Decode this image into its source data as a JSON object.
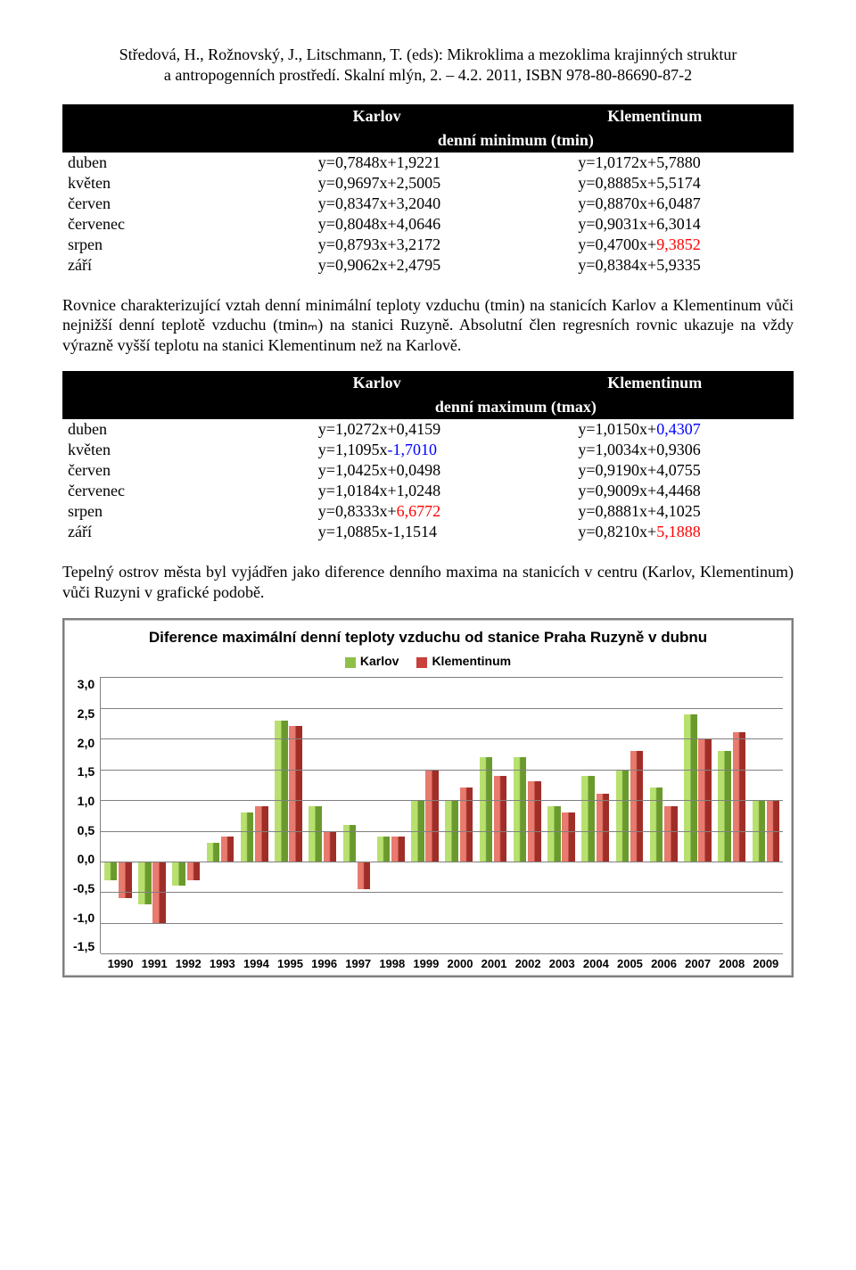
{
  "header": {
    "line1": "Středová, H., Rožnovský, J., Litschmann, T. (eds): Mikroklima a mezoklima krajinných struktur",
    "line2": "a antropogenních prostředí. Skalní mlýn, 2. – 4.2. 2011, ISBN 978-80-86690-87-2"
  },
  "table1": {
    "col1": "Karlov",
    "col2": "Klementinum",
    "sub": "denní minimum (tmin)",
    "rows": [
      {
        "m": "duben",
        "k": [
          [
            "y=0,7848x+"
          ],
          [
            "1,9221"
          ]
        ],
        "kl": [
          [
            "y=1,0172x+"
          ],
          [
            "5,7880"
          ]
        ]
      },
      {
        "m": "květen",
        "k": [
          [
            "y=0,9697x+"
          ],
          [
            "2,5005"
          ]
        ],
        "kl": [
          [
            "y=0,8885x+"
          ],
          [
            "5,5174"
          ]
        ]
      },
      {
        "m": "červen",
        "k": [
          [
            "y=0,8347x+"
          ],
          [
            "3,2040"
          ]
        ],
        "kl": [
          [
            "y=0,8870x+"
          ],
          [
            "6,0487"
          ]
        ]
      },
      {
        "m": "červenec",
        "k": [
          [
            "y=0,8048x+"
          ],
          [
            "4,0646"
          ]
        ],
        "kl": [
          [
            "y=0,9031x+"
          ],
          [
            "6,3014"
          ]
        ]
      },
      {
        "m": "srpen",
        "k": [
          [
            "y=0,8793x+"
          ],
          [
            "3,2172"
          ]
        ],
        "kl": [
          [
            "y=0,4700x+"
          ],
          [
            "9,3852",
            "red"
          ]
        ]
      },
      {
        "m": "září",
        "k": [
          [
            "y=0,9062x+"
          ],
          [
            "2,4795"
          ]
        ],
        "kl": [
          [
            "y=0,8384x+"
          ],
          [
            "5,9335"
          ]
        ]
      }
    ]
  },
  "para1": "Rovnice charakterizující vztah denní minimální teploty vzduchu (tmin) na stanicích Karlov a Klementinum vůči nejnižší denní teplotě vzduchu (tminₘ) na stanici Ruzyně. Absolutní člen regresních rovnic ukazuje na vždy výrazně vyšší teplotu na stanici Klementinum než na Karlově.",
  "table2": {
    "col1": "Karlov",
    "col2": "Klementinum",
    "sub": "denní maximum (tmax)",
    "rows": [
      {
        "m": "duben",
        "k": [
          [
            "y=1,0272x+"
          ],
          [
            "0,4159"
          ]
        ],
        "kl": [
          [
            "y=1,0150x+"
          ],
          [
            "0,4307",
            "blue"
          ]
        ]
      },
      {
        "m": "květen",
        "k": [
          [
            "y=1,1095x"
          ],
          [
            "-1,7010",
            "blue"
          ]
        ],
        "kl": [
          [
            "y=1,0034x+"
          ],
          [
            "0,9306"
          ]
        ]
      },
      {
        "m": "červen",
        "k": [
          [
            "y=1,0425x+"
          ],
          [
            "0,0498"
          ]
        ],
        "kl": [
          [
            "y=0,9190x+"
          ],
          [
            "4,0755"
          ]
        ]
      },
      {
        "m": "červenec",
        "k": [
          [
            "y=1,0184x+"
          ],
          [
            "1,0248"
          ]
        ],
        "kl": [
          [
            "y=0,9009x+"
          ],
          [
            "4,4468"
          ]
        ]
      },
      {
        "m": "srpen",
        "k": [
          [
            "y=0,8333x+"
          ],
          [
            "6,6772",
            "red"
          ]
        ],
        "kl": [
          [
            "y=0,8881x+"
          ],
          [
            "4,1025"
          ]
        ]
      },
      {
        "m": "září",
        "k": [
          [
            "y=1,0885x-"
          ],
          [
            "1,1514"
          ]
        ],
        "kl": [
          [
            "y=0,8210x+"
          ],
          [
            "5,1888",
            "red"
          ]
        ]
      }
    ]
  },
  "para2": "Tepelný ostrov města byl vyjádřen jako diference denního maxima na stanicích v centru (Karlov, Klementinum) vůči Ruzyni v grafické podobě.",
  "chart": {
    "title": "Diference maximální denní teploty vzduchu od stanice Praha Ruzyně v dubnu",
    "legend": [
      {
        "label": "Karlov",
        "color": "#8fbf4a"
      },
      {
        "label": "Klementinum",
        "color": "#c8403a"
      }
    ],
    "ymin": -1.5,
    "ymax": 3.0,
    "ystep": 0.5,
    "yticks": [
      "3,0",
      "2,5",
      "2,0",
      "1,5",
      "1,0",
      "0,5",
      "0,0",
      "-0,5",
      "-1,0",
      "-1,5"
    ],
    "colors": {
      "karlov": {
        "light": "#b8e06f",
        "dark": "#6a9a2e"
      },
      "klem": {
        "light": "#e87a6e",
        "dark": "#a02e28"
      },
      "grid": "#808080",
      "bg": "#ffffff"
    },
    "years": [
      "1990",
      "1991",
      "1992",
      "1993",
      "1994",
      "1995",
      "1996",
      "1997",
      "1998",
      "1999",
      "2000",
      "2001",
      "2002",
      "2003",
      "2004",
      "2005",
      "2006",
      "2007",
      "2008",
      "2009"
    ],
    "karlov": [
      -0.3,
      -0.7,
      -0.4,
      0.3,
      0.8,
      2.3,
      0.9,
      0.6,
      0.4,
      1.0,
      1.0,
      1.7,
      1.7,
      0.9,
      1.4,
      1.5,
      1.2,
      2.4,
      1.8,
      1.0
    ],
    "klem": [
      -0.6,
      -1.0,
      -0.3,
      0.4,
      0.9,
      2.2,
      0.5,
      -0.45,
      0.4,
      1.5,
      1.2,
      1.4,
      1.3,
      0.8,
      1.1,
      1.8,
      0.9,
      2.0,
      2.1,
      1.0
    ]
  }
}
